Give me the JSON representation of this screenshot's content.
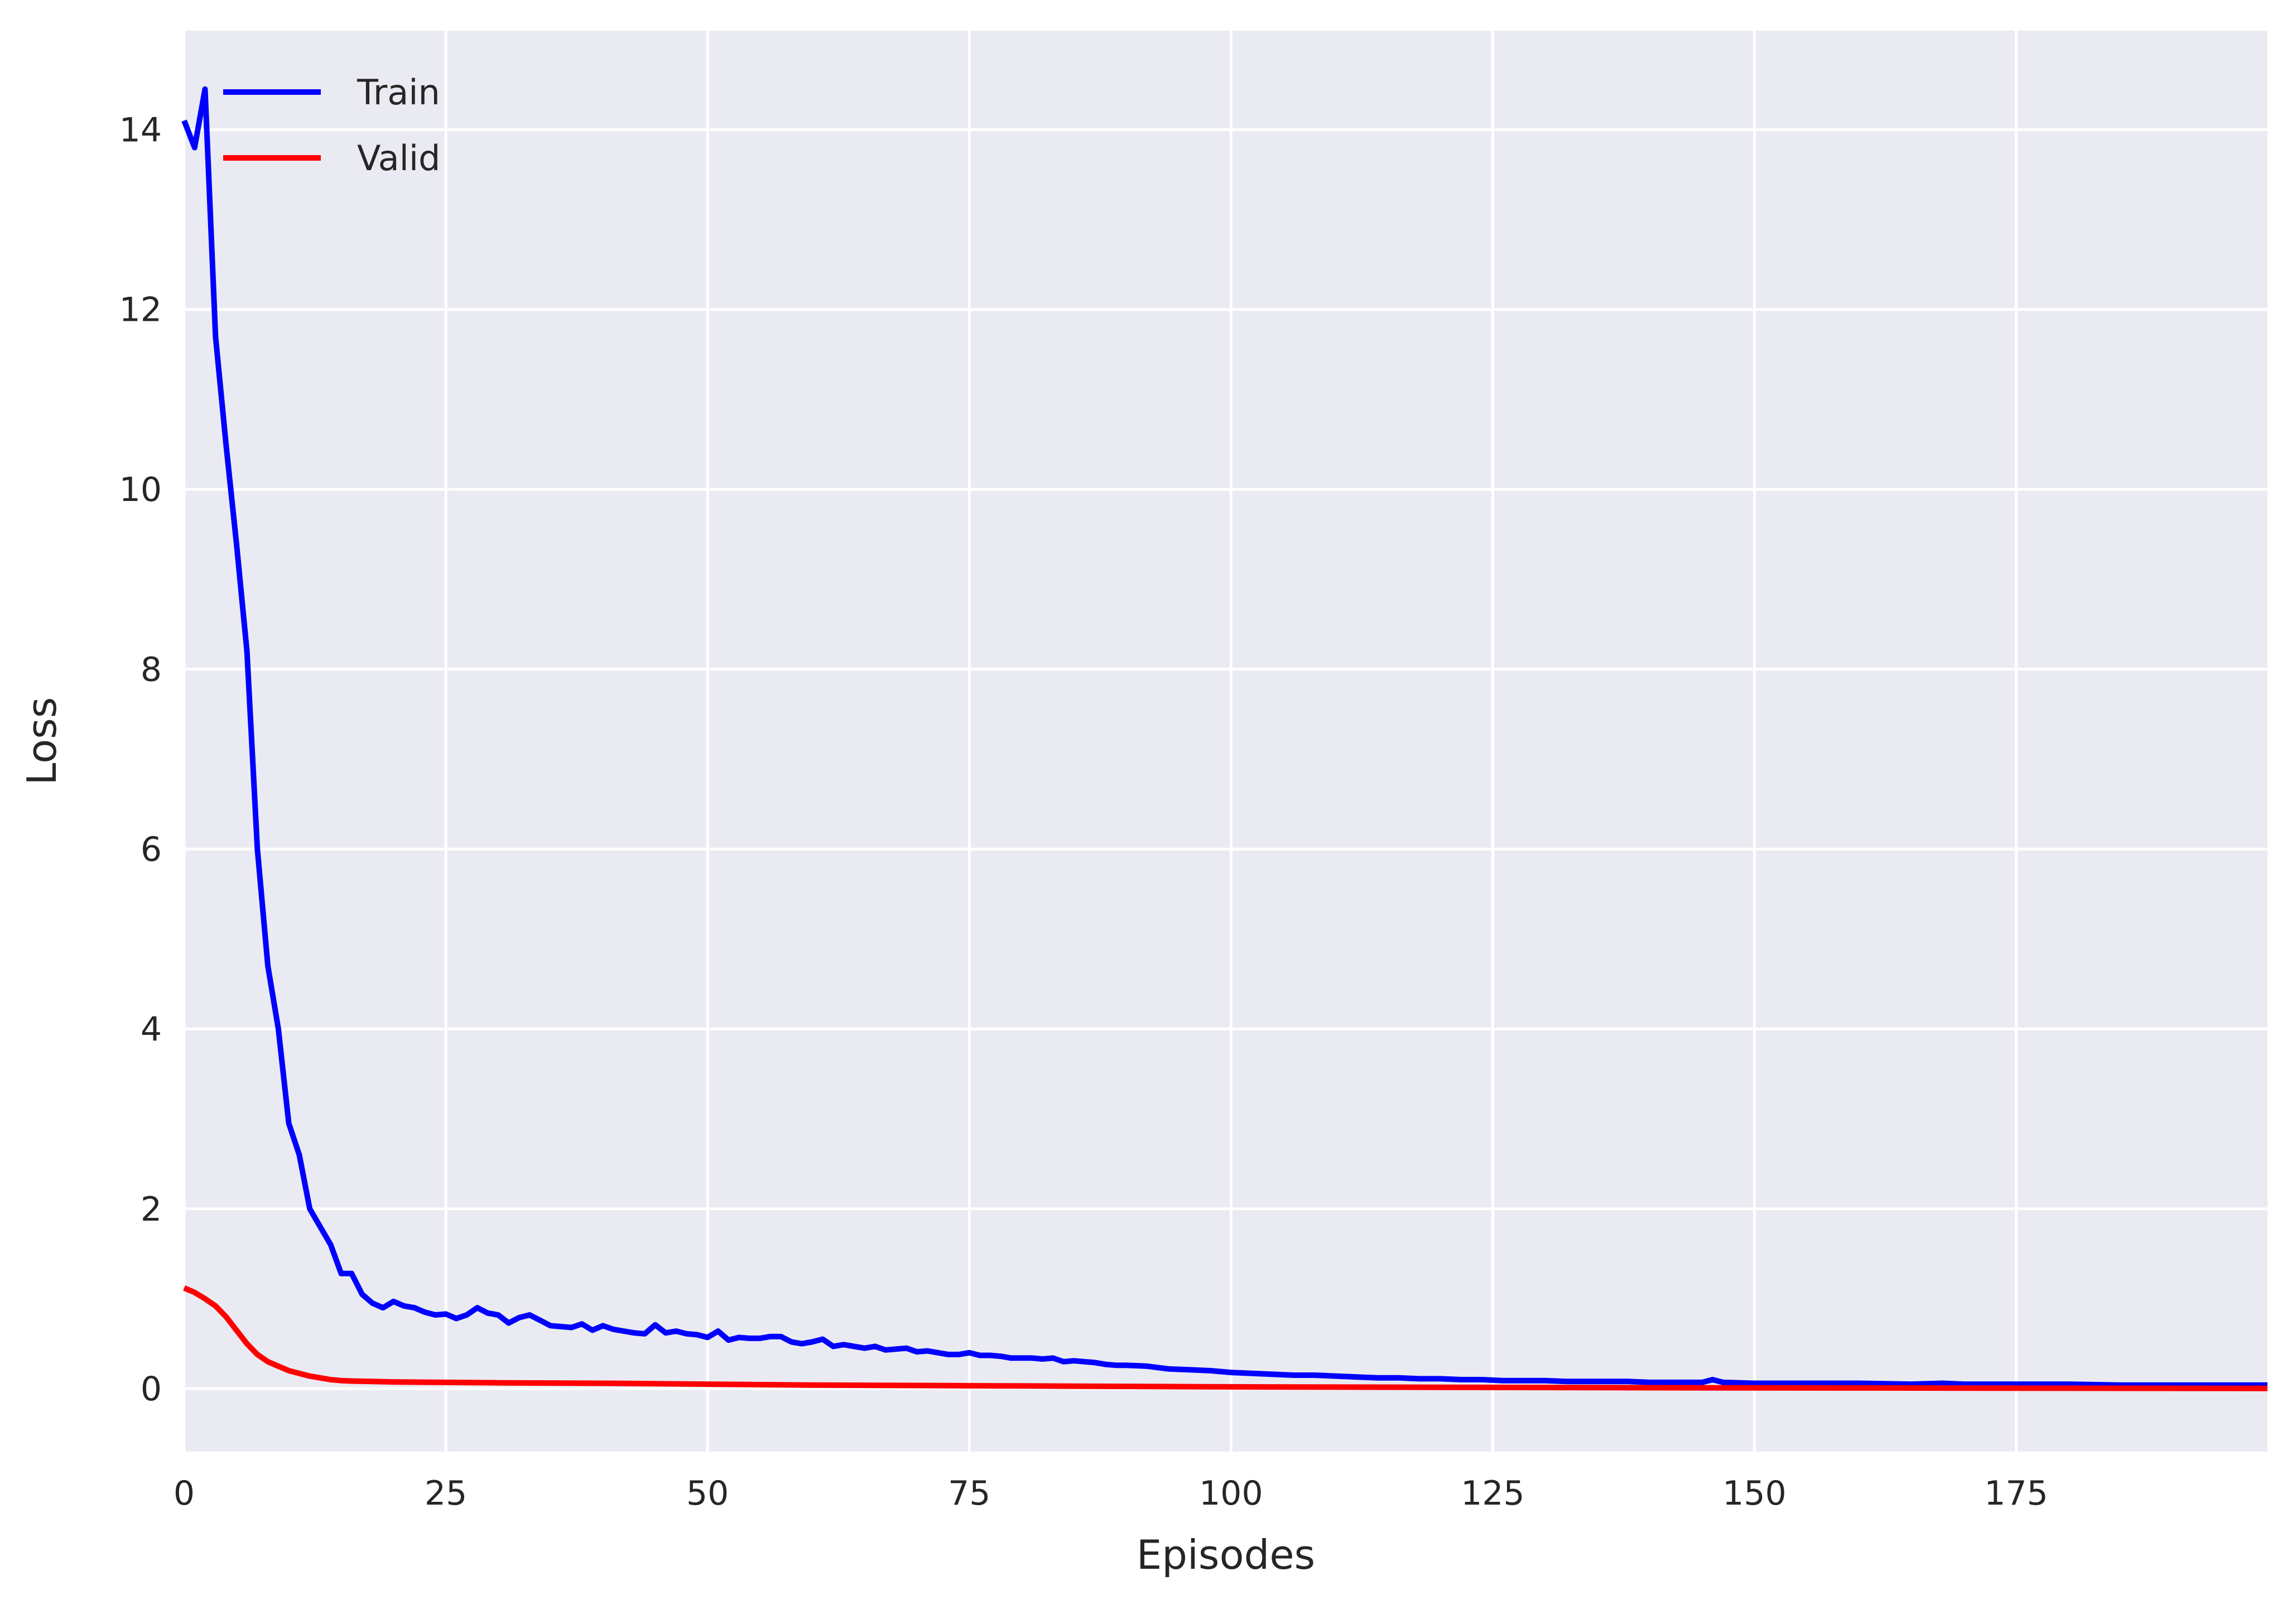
{
  "chart_data": {
    "type": "line",
    "xlabel": "Episodes",
    "ylabel": "Loss",
    "xlim": [
      0,
      199
    ],
    "ylim": [
      -0.7,
      15.1
    ],
    "xticks": [
      0,
      25,
      50,
      75,
      100,
      125,
      150,
      175
    ],
    "yticks": [
      0,
      2,
      4,
      6,
      8,
      10,
      12,
      14
    ],
    "grid": true,
    "legend": {
      "position": "top-left"
    },
    "background": "#eaeaf2",
    "series": [
      {
        "name": "Train",
        "color": "#0000ff",
        "points": [
          [
            0,
            14.1
          ],
          [
            1,
            13.8
          ],
          [
            2,
            14.45
          ],
          [
            3,
            11.7
          ],
          [
            4,
            10.5
          ],
          [
            5,
            9.4
          ],
          [
            6,
            8.2
          ],
          [
            7,
            6.0
          ],
          [
            8,
            4.7
          ],
          [
            9,
            4.0
          ],
          [
            10,
            2.95
          ],
          [
            11,
            2.6
          ],
          [
            12,
            2.0
          ],
          [
            13,
            1.8
          ],
          [
            14,
            1.6
          ],
          [
            15,
            1.28
          ],
          [
            16,
            1.28
          ],
          [
            17,
            1.05
          ],
          [
            18,
            0.95
          ],
          [
            19,
            0.9
          ],
          [
            20,
            0.97
          ],
          [
            21,
            0.92
          ],
          [
            22,
            0.9
          ],
          [
            23,
            0.85
          ],
          [
            24,
            0.82
          ],
          [
            25,
            0.83
          ],
          [
            26,
            0.78
          ],
          [
            27,
            0.82
          ],
          [
            28,
            0.9
          ],
          [
            29,
            0.84
          ],
          [
            30,
            0.82
          ],
          [
            31,
            0.73
          ],
          [
            32,
            0.79
          ],
          [
            33,
            0.82
          ],
          [
            34,
            0.76
          ],
          [
            35,
            0.7
          ],
          [
            36,
            0.69
          ],
          [
            37,
            0.68
          ],
          [
            38,
            0.72
          ],
          [
            39,
            0.65
          ],
          [
            40,
            0.7
          ],
          [
            41,
            0.66
          ],
          [
            42,
            0.64
          ],
          [
            43,
            0.62
          ],
          [
            44,
            0.61
          ],
          [
            45,
            0.71
          ],
          [
            46,
            0.62
          ],
          [
            47,
            0.64
          ],
          [
            48,
            0.61
          ],
          [
            49,
            0.6
          ],
          [
            50,
            0.57
          ],
          [
            51,
            0.64
          ],
          [
            52,
            0.54
          ],
          [
            53,
            0.57
          ],
          [
            54,
            0.56
          ],
          [
            55,
            0.56
          ],
          [
            56,
            0.58
          ],
          [
            57,
            0.58
          ],
          [
            58,
            0.52
          ],
          [
            59,
            0.5
          ],
          [
            60,
            0.52
          ],
          [
            61,
            0.55
          ],
          [
            62,
            0.47
          ],
          [
            63,
            0.49
          ],
          [
            64,
            0.47
          ],
          [
            65,
            0.45
          ],
          [
            66,
            0.47
          ],
          [
            67,
            0.43
          ],
          [
            68,
            0.44
          ],
          [
            69,
            0.45
          ],
          [
            70,
            0.41
          ],
          [
            71,
            0.42
          ],
          [
            72,
            0.4
          ],
          [
            73,
            0.38
          ],
          [
            74,
            0.38
          ],
          [
            75,
            0.4
          ],
          [
            76,
            0.37
          ],
          [
            77,
            0.37
          ],
          [
            78,
            0.36
          ],
          [
            79,
            0.34
          ],
          [
            80,
            0.34
          ],
          [
            81,
            0.34
          ],
          [
            82,
            0.33
          ],
          [
            83,
            0.34
          ],
          [
            84,
            0.3
          ],
          [
            85,
            0.31
          ],
          [
            86,
            0.3
          ],
          [
            87,
            0.29
          ],
          [
            88,
            0.27
          ],
          [
            89,
            0.26
          ],
          [
            90,
            0.26
          ],
          [
            92,
            0.25
          ],
          [
            94,
            0.22
          ],
          [
            96,
            0.21
          ],
          [
            98,
            0.2
          ],
          [
            100,
            0.18
          ],
          [
            102,
            0.17
          ],
          [
            104,
            0.16
          ],
          [
            106,
            0.15
          ],
          [
            108,
            0.15
          ],
          [
            110,
            0.14
          ],
          [
            112,
            0.13
          ],
          [
            114,
            0.12
          ],
          [
            116,
            0.12
          ],
          [
            118,
            0.11
          ],
          [
            120,
            0.11
          ],
          [
            122,
            0.1
          ],
          [
            124,
            0.1
          ],
          [
            126,
            0.09
          ],
          [
            128,
            0.09
          ],
          [
            130,
            0.09
          ],
          [
            132,
            0.08
          ],
          [
            134,
            0.08
          ],
          [
            136,
            0.08
          ],
          [
            138,
            0.08
          ],
          [
            140,
            0.07
          ],
          [
            142,
            0.07
          ],
          [
            144,
            0.07
          ],
          [
            145,
            0.07
          ],
          [
            146,
            0.1
          ],
          [
            147,
            0.07
          ],
          [
            150,
            0.06
          ],
          [
            155,
            0.06
          ],
          [
            160,
            0.06
          ],
          [
            165,
            0.05
          ],
          [
            168,
            0.06
          ],
          [
            170,
            0.05
          ],
          [
            175,
            0.05
          ],
          [
            180,
            0.05
          ],
          [
            185,
            0.04
          ],
          [
            190,
            0.04
          ],
          [
            195,
            0.04
          ],
          [
            199,
            0.04
          ]
        ]
      },
      {
        "name": "Valid",
        "color": "#ff0000",
        "points": [
          [
            0,
            1.12
          ],
          [
            1,
            1.07
          ],
          [
            2,
            1.0
          ],
          [
            3,
            0.92
          ],
          [
            4,
            0.8
          ],
          [
            5,
            0.65
          ],
          [
            6,
            0.5
          ],
          [
            7,
            0.38
          ],
          [
            8,
            0.3
          ],
          [
            9,
            0.25
          ],
          [
            10,
            0.2
          ],
          [
            11,
            0.17
          ],
          [
            12,
            0.14
          ],
          [
            13,
            0.12
          ],
          [
            14,
            0.1
          ],
          [
            15,
            0.09
          ],
          [
            16,
            0.085
          ],
          [
            18,
            0.08
          ],
          [
            20,
            0.075
          ],
          [
            25,
            0.07
          ],
          [
            30,
            0.065
          ],
          [
            40,
            0.06
          ],
          [
            50,
            0.05
          ],
          [
            60,
            0.04
          ],
          [
            70,
            0.035
          ],
          [
            80,
            0.03
          ],
          [
            90,
            0.025
          ],
          [
            100,
            0.02
          ],
          [
            120,
            0.015
          ],
          [
            140,
            0.01
          ],
          [
            160,
            0.008
          ],
          [
            180,
            0.005
          ],
          [
            199,
            0.003
          ]
        ]
      }
    ]
  }
}
